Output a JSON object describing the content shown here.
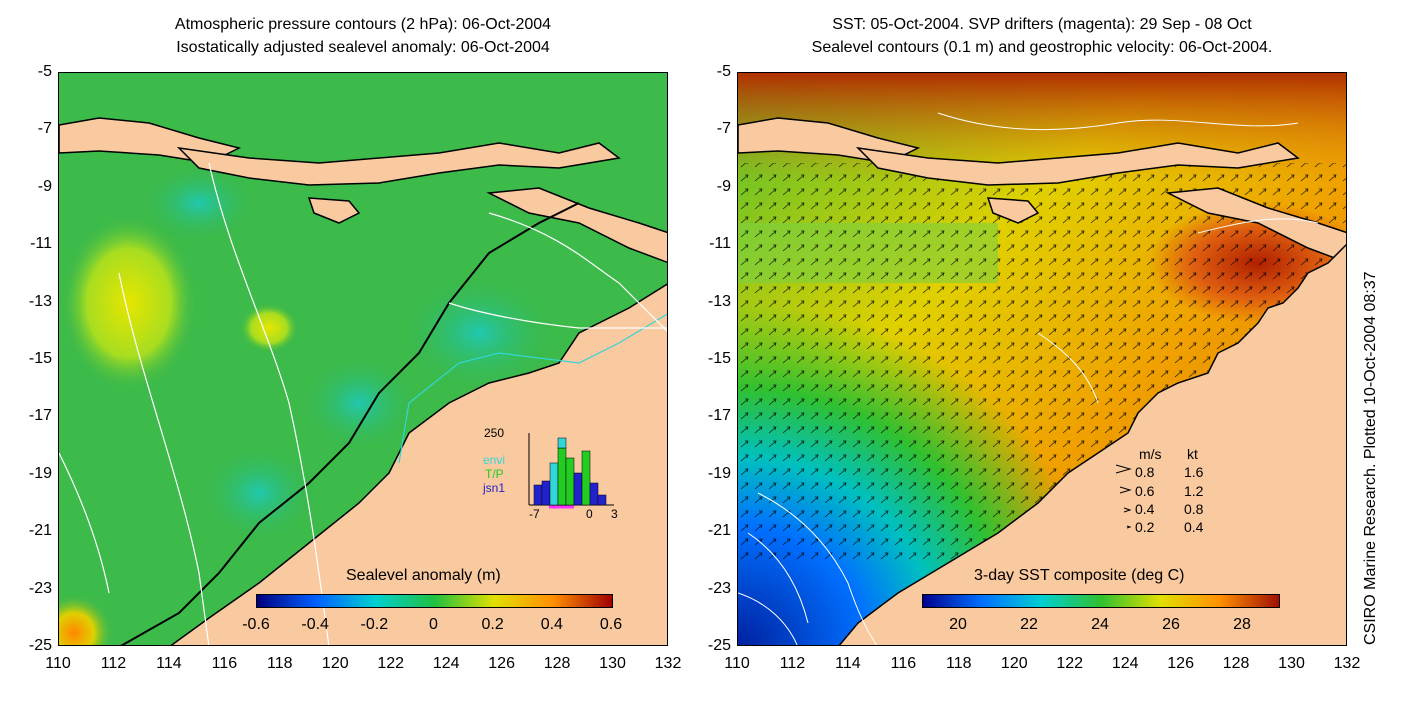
{
  "left": {
    "title_line1": "Atmospheric pressure contours (2 hPa): 06-Oct-2004",
    "title_line2": "Isostatically adjusted sealevel anomaly: 06-Oct-2004",
    "colorbar_label": "Sealevel anomaly (m)",
    "colorbar_ticks": [
      "-0.6",
      "-0.4",
      "-0.2",
      "0",
      "0.2",
      "0.4",
      "0.6"
    ],
    "histogram": {
      "ymax_label": "250",
      "x_ticks": [
        "-7",
        "0",
        "3"
      ],
      "legend": [
        {
          "label": "envi",
          "color": "#33d6d6"
        },
        {
          "label": "T/P",
          "color": "#22cc22"
        },
        {
          "label": "jsn1",
          "color": "#2222cc"
        }
      ]
    }
  },
  "right": {
    "title_line1": "SST: 05-Oct-2004. SVP drifters (magenta): 29 Sep - 08 Oct",
    "title_line2": "Sealevel contours (0.1 m) and geostrophic velocity: 06-Oct-2004.",
    "colorbar_label": "3-day SST composite (deg C)",
    "colorbar_ticks": [
      "20",
      "22",
      "24",
      "26",
      "28"
    ],
    "speed_legend": {
      "header_ms": "m/s",
      "header_kt": "kt",
      "rows": [
        {
          "ms": "0.8",
          "kt": "1.6"
        },
        {
          "ms": "0.6",
          "kt": "1.2"
        },
        {
          "ms": "0.4",
          "kt": "0.8"
        },
        {
          "ms": "0.2",
          "kt": "0.4"
        }
      ]
    },
    "side_text": "CSIRO Marine Research. Plotted 10-Oct-2004 08:37"
  },
  "axes": {
    "y_ticks": [
      "-5",
      "-7",
      "-9",
      "-11",
      "-13",
      "-15",
      "-17",
      "-19",
      "-21",
      "-23",
      "-25"
    ],
    "x_ticks": [
      "110",
      "112",
      "114",
      "116",
      "118",
      "120",
      "122",
      "124",
      "126",
      "128",
      "130",
      "132"
    ],
    "lon_range": [
      110,
      132
    ],
    "lat_range": [
      -25,
      -5
    ]
  },
  "colors": {
    "land": "#f9c9a0",
    "sla_cmap": [
      "#00007f",
      "#0060ff",
      "#00d0d0",
      "#20c040",
      "#e0e000",
      "#ff9000",
      "#a00000"
    ],
    "sst_cmap": [
      "#000090",
      "#0070ff",
      "#00d0d0",
      "#30c030",
      "#e0e000",
      "#ff9000",
      "#a01000"
    ]
  }
}
